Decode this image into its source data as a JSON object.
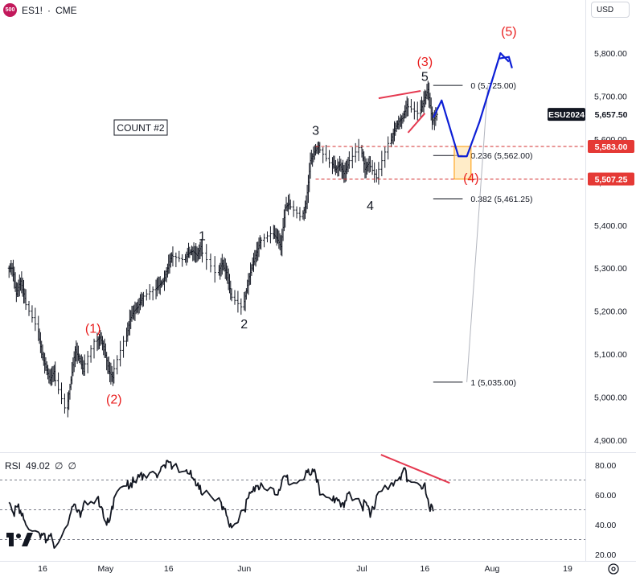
{
  "header": {
    "badge": "500",
    "symbol": "ES1!",
    "separator": "·",
    "exchange": "CME"
  },
  "currency_button": "USD",
  "rsi_header": {
    "label": "RSI",
    "value": "49.02",
    "sym1": "∅",
    "sym2": "∅"
  },
  "chart_data": [
    {
      "type": "candlestick",
      "title": "",
      "y_ticks": [
        "5,800.00",
        "5,700.00",
        "5,600.00",
        "5,500.00",
        "5,400.00",
        "5,300.00",
        "5,200.00",
        "5,100.00",
        "5,000.00",
        "4,900.00"
      ],
      "ylim": [
        4870,
        5880
      ],
      "x_ticks": [
        {
          "label": "16",
          "date": "2024-04-16"
        },
        {
          "label": "May",
          "date": "2024-05-01"
        },
        {
          "label": "16",
          "date": "2024-05-16"
        },
        {
          "label": "Jun",
          "date": "2024-06-03"
        },
        {
          "label": "Jul",
          "date": "2024-07-01"
        },
        {
          "label": "16",
          "date": "2024-07-16"
        },
        {
          "label": "Aug",
          "date": "2024-08-01"
        },
        {
          "label": "19",
          "date": "2024-08-19"
        }
      ],
      "price_path": [
        {
          "date": "2024-04-08",
          "price": 5300
        },
        {
          "date": "2024-04-09",
          "price": 5240
        },
        {
          "date": "2024-04-10",
          "price": 5270
        },
        {
          "date": "2024-04-11",
          "price": 5230
        },
        {
          "date": "2024-04-12",
          "price": 5170
        },
        {
          "date": "2024-04-15",
          "price": 5100
        },
        {
          "date": "2024-04-16",
          "price": 5070
        },
        {
          "date": "2024-04-17",
          "price": 5040
        },
        {
          "date": "2024-04-18",
          "price": 5060
        },
        {
          "date": "2024-04-19",
          "price": 4975
        },
        {
          "date": "2024-04-22",
          "price": 5040
        },
        {
          "date": "2024-04-23",
          "price": 5110
        },
        {
          "date": "2024-04-24",
          "price": 5090
        },
        {
          "date": "2024-04-25",
          "price": 5060
        },
        {
          "date": "2024-04-26",
          "price": 5130
        },
        {
          "date": "2024-04-29",
          "price": 5140
        },
        {
          "date": "2024-04-30",
          "price": 5110
        },
        {
          "date": "2024-05-01",
          "price": 5060
        },
        {
          "date": "2024-05-02",
          "price": 5045
        },
        {
          "date": "2024-05-03",
          "price": 5130
        },
        {
          "date": "2024-05-06",
          "price": 5180
        },
        {
          "date": "2024-05-07",
          "price": 5200
        },
        {
          "date": "2024-05-08",
          "price": 5210
        },
        {
          "date": "2024-05-09",
          "price": 5230
        },
        {
          "date": "2024-05-10",
          "price": 5250
        },
        {
          "date": "2024-05-13",
          "price": 5260
        },
        {
          "date": "2024-05-14",
          "price": 5270
        },
        {
          "date": "2024-05-15",
          "price": 5300
        },
        {
          "date": "2024-05-16",
          "price": 5330
        },
        {
          "date": "2024-05-17",
          "price": 5320
        },
        {
          "date": "2024-05-20",
          "price": 5335
        },
        {
          "date": "2024-05-21",
          "price": 5340
        },
        {
          "date": "2024-05-22",
          "price": 5330
        },
        {
          "date": "2024-05-23",
          "price": 5350
        },
        {
          "date": "2024-05-24",
          "price": 5290
        },
        {
          "date": "2024-05-28",
          "price": 5310
        },
        {
          "date": "2024-05-29",
          "price": 5290
        },
        {
          "date": "2024-05-30",
          "price": 5240
        },
        {
          "date": "2024-05-31",
          "price": 5210
        },
        {
          "date": "2024-06-03",
          "price": 5260
        },
        {
          "date": "2024-06-04",
          "price": 5300
        },
        {
          "date": "2024-06-05",
          "price": 5330
        },
        {
          "date": "2024-06-06",
          "price": 5360
        },
        {
          "date": "2024-06-07",
          "price": 5380
        },
        {
          "date": "2024-06-10",
          "price": 5370
        },
        {
          "date": "2024-06-11",
          "price": 5350
        },
        {
          "date": "2024-06-12",
          "price": 5440
        },
        {
          "date": "2024-06-13",
          "price": 5450
        },
        {
          "date": "2024-06-14",
          "price": 5420
        },
        {
          "date": "2024-06-17",
          "price": 5450
        },
        {
          "date": "2024-06-18",
          "price": 5550
        },
        {
          "date": "2024-06-19",
          "price": 5570
        },
        {
          "date": "2024-06-20",
          "price": 5585
        },
        {
          "date": "2024-06-21",
          "price": 5545
        },
        {
          "date": "2024-06-24",
          "price": 5530
        },
        {
          "date": "2024-06-25",
          "price": 5540
        },
        {
          "date": "2024-06-26",
          "price": 5520
        },
        {
          "date": "2024-06-27",
          "price": 5540
        },
        {
          "date": "2024-06-28",
          "price": 5580
        },
        {
          "date": "2024-07-01",
          "price": 5530
        },
        {
          "date": "2024-07-02",
          "price": 5545
        },
        {
          "date": "2024-07-03",
          "price": 5510
        },
        {
          "date": "2024-07-05",
          "price": 5590
        },
        {
          "date": "2024-07-08",
          "price": 5620
        },
        {
          "date": "2024-07-09",
          "price": 5640
        },
        {
          "date": "2024-07-10",
          "price": 5650
        },
        {
          "date": "2024-07-11",
          "price": 5680
        },
        {
          "date": "2024-07-12",
          "price": 5660
        },
        {
          "date": "2024-07-15",
          "price": 5690
        },
        {
          "date": "2024-07-16",
          "price": 5715
        },
        {
          "date": "2024-07-17",
          "price": 5640
        },
        {
          "date": "2024-07-18",
          "price": 5657.5
        }
      ],
      "wave_labels": [
        {
          "text": "(1)",
          "date": "2024-04-28",
          "price": 5150,
          "color": "#e91e1e"
        },
        {
          "text": "(2)",
          "date": "2024-05-03",
          "price": 4985,
          "color": "#e91e1e"
        },
        {
          "text": "(3)",
          "date": "2024-07-16",
          "price": 5770,
          "color": "#e91e1e"
        },
        {
          "text": "(4)",
          "date": "2024-07-27",
          "price": 5500,
          "color": "#e91e1e"
        },
        {
          "text": "(5)",
          "date": "2024-08-05",
          "price": 5840,
          "color": "#e91e1e"
        },
        {
          "text": "1",
          "date": "2024-05-24",
          "price": 5365,
          "color": "#131722"
        },
        {
          "text": "2",
          "date": "2024-06-03",
          "price": 5160,
          "color": "#131722"
        },
        {
          "text": "3",
          "date": "2024-06-20",
          "price": 5610,
          "color": "#131722"
        },
        {
          "text": "4",
          "date": "2024-07-03",
          "price": 5435,
          "color": "#131722"
        },
        {
          "text": "5",
          "date": "2024-07-16",
          "price": 5735,
          "color": "#131722"
        }
      ],
      "annotation_box": "COUNT #2",
      "fib_levels": [
        {
          "ratio": "0",
          "price": 5725.0,
          "label": "0 (5,725.00)"
        },
        {
          "ratio": "0.236",
          "price": 5562.0,
          "label": "0.236 (5,562.00)"
        },
        {
          "ratio": "0.382",
          "price": 5461.25,
          "label": "0.382 (5,461.25)"
        },
        {
          "ratio": "1",
          "price": 5035.0,
          "label": "1 (5,035.00)"
        }
      ],
      "projection_path": [
        {
          "date": "2024-07-18",
          "price": 5650
        },
        {
          "date": "2024-07-20",
          "price": 5690
        },
        {
          "date": "2024-07-24",
          "price": 5560
        },
        {
          "date": "2024-07-26",
          "price": 5560
        },
        {
          "date": "2024-07-29",
          "price": 5640
        },
        {
          "date": "2024-08-03",
          "price": 5800
        },
        {
          "date": "2024-08-05",
          "price": 5780
        }
      ],
      "target_zone": {
        "date_start": "2024-07-23",
        "date_end": "2024-07-27",
        "price_high": 5583.0,
        "price_low": 5507.25,
        "color": "#ff9800"
      },
      "red_dashed_levels": [
        5583.0,
        5507.25
      ],
      "price_tags": [
        {
          "text": "ESU2024",
          "price": 5657.5,
          "bg": "#131722",
          "fg": "#ffffff"
        },
        {
          "text": "5,657.50",
          "price": 5657.5,
          "bg": "#ffffff",
          "fg": "#131722"
        },
        {
          "text": "5,583.00",
          "price": 5583.0,
          "bg": "#e53935",
          "fg": "#ffffff"
        },
        {
          "text": "5,507.25",
          "price": 5507.25,
          "bg": "#e53935",
          "fg": "#ffffff"
        }
      ],
      "colors": {
        "candles": "#131722",
        "projection": "#0d1fd6",
        "divergence": "#e53950",
        "dashed": "#d32f2f"
      }
    },
    {
      "type": "line",
      "name": "RSI",
      "y_ticks": [
        "80.00",
        "60.00",
        "40.00",
        "20.00"
      ],
      "ylim": [
        18,
        86
      ],
      "levels": [
        70,
        50,
        30
      ],
      "values": [
        {
          "date": "2024-04-08",
          "value": 55
        },
        {
          "date": "2024-04-09",
          "value": 48
        },
        {
          "date": "2024-04-10",
          "value": 52
        },
        {
          "date": "2024-04-11",
          "value": 46
        },
        {
          "date": "2024-04-12",
          "value": 40
        },
        {
          "date": "2024-04-15",
          "value": 35
        },
        {
          "date": "2024-04-16",
          "value": 33
        },
        {
          "date": "2024-04-17",
          "value": 30
        },
        {
          "date": "2024-04-18",
          "value": 34
        },
        {
          "date": "2024-04-19",
          "value": 25
        },
        {
          "date": "2024-04-22",
          "value": 40
        },
        {
          "date": "2024-04-23",
          "value": 52
        },
        {
          "date": "2024-04-24",
          "value": 50
        },
        {
          "date": "2024-04-25",
          "value": 45
        },
        {
          "date": "2024-04-26",
          "value": 56
        },
        {
          "date": "2024-04-29",
          "value": 58
        },
        {
          "date": "2024-04-30",
          "value": 52
        },
        {
          "date": "2024-05-01",
          "value": 42
        },
        {
          "date": "2024-05-02",
          "value": 43
        },
        {
          "date": "2024-05-03",
          "value": 58
        },
        {
          "date": "2024-05-06",
          "value": 66
        },
        {
          "date": "2024-05-07",
          "value": 68
        },
        {
          "date": "2024-05-08",
          "value": 69
        },
        {
          "date": "2024-05-09",
          "value": 72
        },
        {
          "date": "2024-05-10",
          "value": 74
        },
        {
          "date": "2024-05-13",
          "value": 74
        },
        {
          "date": "2024-05-14",
          "value": 76
        },
        {
          "date": "2024-05-15",
          "value": 80
        },
        {
          "date": "2024-05-16",
          "value": 82
        },
        {
          "date": "2024-05-17",
          "value": 79
        },
        {
          "date": "2024-05-20",
          "value": 76
        },
        {
          "date": "2024-05-21",
          "value": 74
        },
        {
          "date": "2024-05-22",
          "value": 70
        },
        {
          "date": "2024-05-23",
          "value": 68
        },
        {
          "date": "2024-05-24",
          "value": 60
        },
        {
          "date": "2024-05-28",
          "value": 58
        },
        {
          "date": "2024-05-29",
          "value": 52
        },
        {
          "date": "2024-05-30",
          "value": 45
        },
        {
          "date": "2024-05-31",
          "value": 38
        },
        {
          "date": "2024-06-03",
          "value": 50
        },
        {
          "date": "2024-06-04",
          "value": 58
        },
        {
          "date": "2024-06-05",
          "value": 62
        },
        {
          "date": "2024-06-06",
          "value": 66
        },
        {
          "date": "2024-06-07",
          "value": 68
        },
        {
          "date": "2024-06-10",
          "value": 64
        },
        {
          "date": "2024-06-11",
          "value": 60
        },
        {
          "date": "2024-06-12",
          "value": 70
        },
        {
          "date": "2024-06-13",
          "value": 72
        },
        {
          "date": "2024-06-14",
          "value": 67
        },
        {
          "date": "2024-06-17",
          "value": 70
        },
        {
          "date": "2024-06-18",
          "value": 75
        },
        {
          "date": "2024-06-19",
          "value": 74
        },
        {
          "date": "2024-06-20",
          "value": 74
        },
        {
          "date": "2024-06-21",
          "value": 60
        },
        {
          "date": "2024-06-24",
          "value": 56
        },
        {
          "date": "2024-06-25",
          "value": 58
        },
        {
          "date": "2024-06-26",
          "value": 52
        },
        {
          "date": "2024-06-27",
          "value": 56
        },
        {
          "date": "2024-06-28",
          "value": 62
        },
        {
          "date": "2024-07-01",
          "value": 52
        },
        {
          "date": "2024-07-02",
          "value": 55
        },
        {
          "date": "2024-07-03",
          "value": 45
        },
        {
          "date": "2024-07-05",
          "value": 62
        },
        {
          "date": "2024-07-08",
          "value": 68
        },
        {
          "date": "2024-07-09",
          "value": 70
        },
        {
          "date": "2024-07-10",
          "value": 72
        },
        {
          "date": "2024-07-11",
          "value": 78
        },
        {
          "date": "2024-07-12",
          "value": 70
        },
        {
          "date": "2024-07-15",
          "value": 66
        },
        {
          "date": "2024-07-16",
          "value": 68
        },
        {
          "date": "2024-07-17",
          "value": 52
        },
        {
          "date": "2024-07-18",
          "value": 49.02
        }
      ],
      "divergence_line": [
        {
          "date": "2024-07-09",
          "value": 82
        },
        {
          "date": "2024-07-20",
          "value": 69
        }
      ]
    }
  ]
}
